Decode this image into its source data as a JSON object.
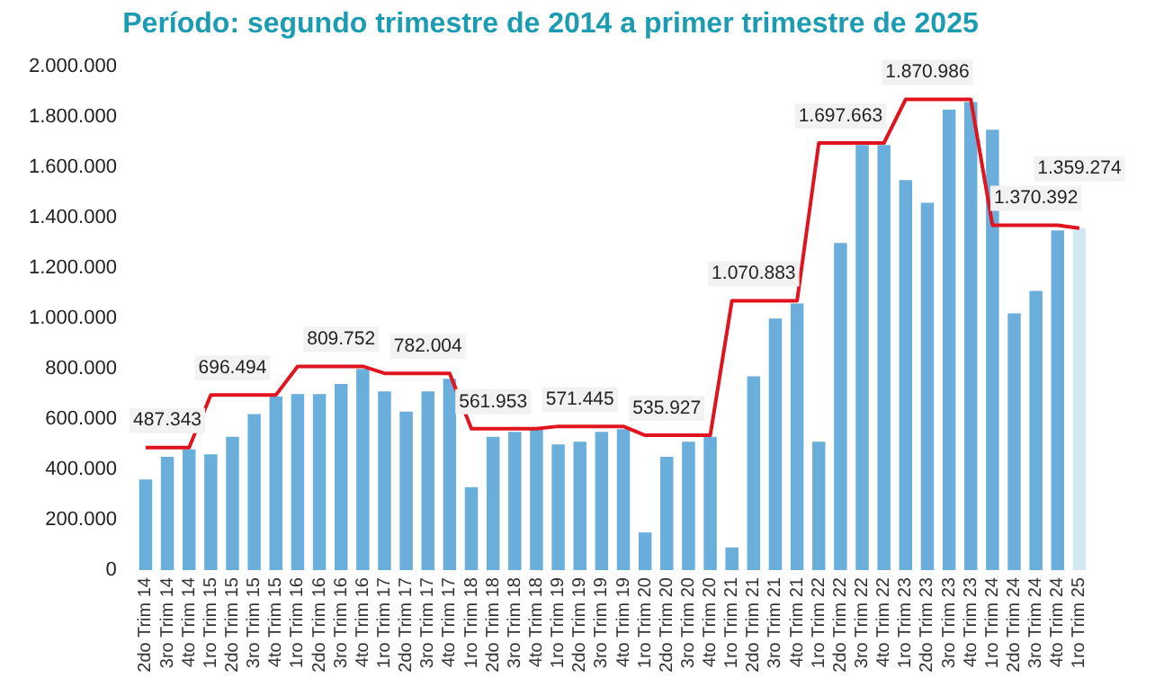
{
  "chart_data": {
    "type": "bar",
    "title": "Período: segundo trimestre de 2014 a primer trimestre de 2025",
    "categories": [
      "2do Trim 14",
      "3ro Trim 14",
      "4to Trim 14",
      "1ro Trim 15",
      "2do Trim 15",
      "3ro Trim 15",
      "4to Trim 15",
      "1ro Trim 16",
      "2do Trim 16",
      "3ro Trim 16",
      "4to Trim 16",
      "1ro Trim 17",
      "2do Trim 17",
      "3ro Trim 17",
      "4to Trim 17",
      "1ro Trim 18",
      "2do Trim 18",
      "3ro Trim 18",
      "4to Trim 18",
      "1ro Trim 19",
      "2do Trim 19",
      "3ro Trim 19",
      "4to Trim 19",
      "1ro Trim 20",
      "2do Trim 20",
      "3ro Trim 20",
      "4to Trim 20",
      "1ro Trim 21",
      "2do Trim 21",
      "3ro Trim 21",
      "4to Trim 21",
      "1ro Trim 22",
      "2do Trim 22",
      "3ro Trim 22",
      "4to Trim 22",
      "1ro Trim 23",
      "2do Trim 23",
      "3ro Trim 23",
      "4to Trim 23",
      "1ro Trim 24",
      "2do Trim 24",
      "3ro Trim 24",
      "4to Trim 24",
      "1ro Trim 25"
    ],
    "series": [
      {
        "colors": [
          "#6aafdc",
          "#6aafdc",
          "#6aafdc",
          "#6aafdc",
          "#6aafdc",
          "#6aafdc",
          "#6aafdc",
          "#6aafdc",
          "#6aafdc",
          "#6aafdc",
          "#6aafdc",
          "#6aafdc",
          "#6aafdc",
          "#6aafdc",
          "#6aafdc",
          "#6aafdc",
          "#6aafdc",
          "#6aafdc",
          "#6aafdc",
          "#6aafdc",
          "#6aafdc",
          "#6aafdc",
          "#6aafdc",
          "#6aafdc",
          "#6aafdc",
          "#6aafdc",
          "#6aafdc",
          "#6aafdc",
          "#6aafdc",
          "#6aafdc",
          "#6aafdc",
          "#6aafdc",
          "#6aafdc",
          "#6aafdc",
          "#6aafdc",
          "#6aafdc",
          "#6aafdc",
          "#6aafdc",
          "#6aafdc",
          "#6aafdc",
          "#6aafdc",
          "#6aafdc",
          "#6aafdc",
          "#d3e6f3"
        ],
        "values": [
          360000,
          450000,
          480000,
          460000,
          530000,
          620000,
          690000,
          700000,
          700000,
          740000,
          800000,
          710000,
          630000,
          710000,
          760000,
          330000,
          530000,
          550000,
          560000,
          500000,
          510000,
          550000,
          560000,
          150000,
          450000,
          510000,
          530000,
          90000,
          770000,
          1000000,
          1060000,
          510000,
          1300000,
          1690000,
          1690000,
          1550000,
          1460000,
          1830000,
          1860000,
          1750000,
          1020000,
          1110000,
          1350000,
          1360000
        ]
      },
      {
        "type": "line",
        "color": "#e0141e",
        "values": [
          487343,
          487343,
          487343,
          696494,
          696494,
          696494,
          696494,
          809752,
          809752,
          809752,
          809752,
          782004,
          782004,
          782004,
          782004,
          561953,
          561953,
          561953,
          561953,
          571445,
          571445,
          571445,
          571445,
          535927,
          535927,
          535927,
          535927,
          1070883,
          1070883,
          1070883,
          1070883,
          1697663,
          1697663,
          1697663,
          1697663,
          1870986,
          1870986,
          1870986,
          1870986,
          1370392,
          1370392,
          1370392,
          1370392,
          1359274
        ]
      }
    ],
    "annotations": [
      {
        "text": "487.343",
        "x": "3ro Trim 14",
        "y": 487343
      },
      {
        "text": "696.494",
        "x": "2do Trim 15",
        "y": 696494
      },
      {
        "text": "809.752",
        "x": "3ro Trim 16",
        "y": 809752
      },
      {
        "text": "782.004",
        "x": "3ro Trim 17",
        "y": 782004
      },
      {
        "text": "561.953",
        "x": "2do Trim 18",
        "y": 561953
      },
      {
        "text": "571.445",
        "x": "2do Trim 19",
        "y": 571445
      },
      {
        "text": "535.927",
        "x": "2do Trim 20",
        "y": 535927
      },
      {
        "text": "1.070.883",
        "x": "2do Trim 21",
        "y": 1070883
      },
      {
        "text": "1.697.663",
        "x": "2do Trim 22",
        "y": 1697663
      },
      {
        "text": "1.870.986",
        "x": "2do Trim 23",
        "y": 1870986
      },
      {
        "text": "1.370.392",
        "x": "3ro Trim 24",
        "y": 1370392
      },
      {
        "text": "1.359.274",
        "x": "1ro Trim 25",
        "y": 1359274
      }
    ],
    "ylim": [
      0,
      2000000
    ],
    "yticks": [
      0,
      {
        "value": 200000,
        "label": "200.000"
      },
      {
        "value": 400000,
        "label": "400.000"
      },
      {
        "value": 600000,
        "label": "600.000"
      },
      {
        "value": 800000,
        "label": "800.000"
      },
      {
        "value": 1000000,
        "label": "1.000.000"
      },
      {
        "value": 1200000,
        "label": "1.200.000"
      },
      {
        "value": 1400000,
        "label": "1.400.000"
      },
      {
        "value": 1600000,
        "label": "1.600.000"
      },
      {
        "value": 1800000,
        "label": "1.800.000"
      },
      {
        "value": 2000000,
        "label": "2.000.000"
      }
    ],
    "grid": false,
    "legend": false
  }
}
